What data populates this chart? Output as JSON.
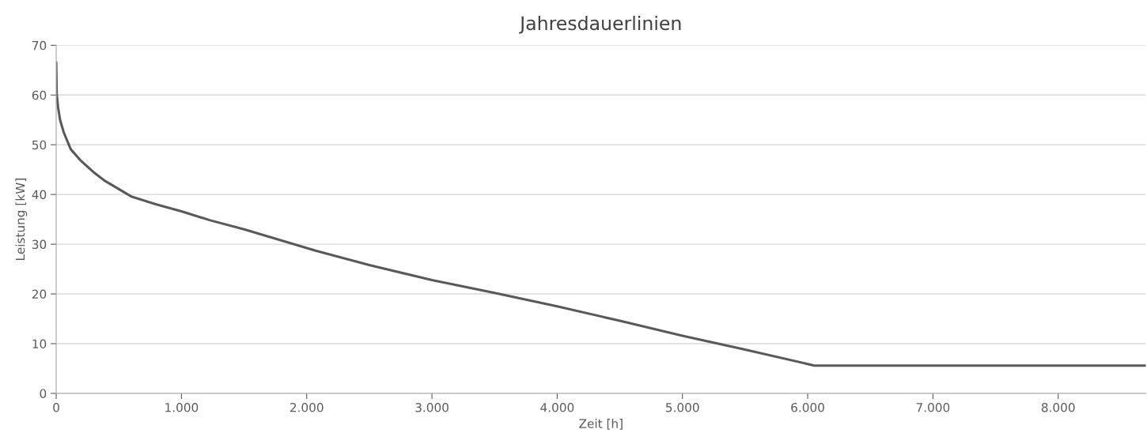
{
  "chart_data": {
    "type": "line",
    "title": "Jahresdauerlinien",
    "xlabel": "Zeit [h]",
    "ylabel": "Leistung [kW]",
    "x": [
      0,
      4,
      15,
      31,
      60,
      116,
      200,
      307,
      391,
      599,
      800,
      1000,
      1230,
      1500,
      2070,
      2500,
      3000,
      3500,
      4000,
      4500,
      5000,
      5500,
      6053,
      8700
    ],
    "series": [
      {
        "color": "#595959",
        "values": [
          66.5,
          60.3,
          57.5,
          55,
          52.5,
          49.1,
          46.7,
          44.3,
          42.7,
          39.6,
          38,
          36.6,
          34.8,
          33,
          28.7,
          25.8,
          22.8,
          20.2,
          17.5,
          14.6,
          11.6,
          8.8,
          5.6,
          5.6
        ]
      }
    ],
    "xlim": [
      0,
      8700
    ],
    "ylim": [
      0,
      70
    ],
    "xticks": [
      0,
      {
        "value": 1000,
        "label": "1.000"
      },
      {
        "value": 2000,
        "label": "2.000"
      },
      {
        "value": 3000,
        "label": "3.000"
      },
      {
        "value": 4000,
        "label": "4.000"
      },
      {
        "value": 5000,
        "label": "5.000"
      },
      {
        "value": 6000,
        "label": "6.000"
      },
      {
        "value": 7000,
        "label": "7.000"
      },
      {
        "value": 8000,
        "label": "8.000"
      }
    ],
    "yticks": [
      0,
      10,
      20,
      30,
      40,
      50,
      60,
      70
    ],
    "grid": "y",
    "legend": false,
    "marker": "none",
    "line_style": "solid"
  }
}
